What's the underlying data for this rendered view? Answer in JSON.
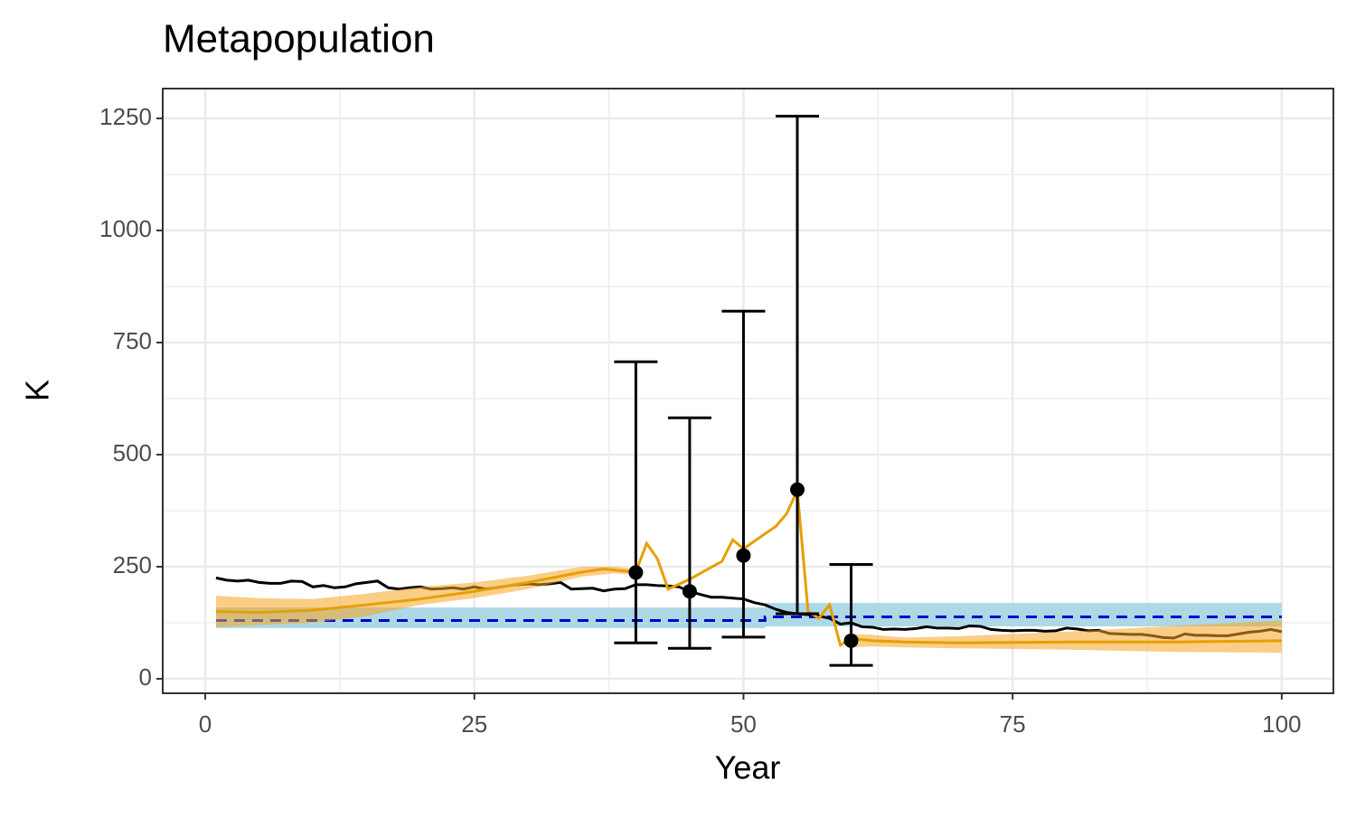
{
  "chart_data": {
    "type": "line",
    "title": "Metapopulation",
    "x_label": "Year",
    "y_label": "K",
    "xlim": [
      -3.95,
      104.8
    ],
    "ylim": [
      -32.3,
      1316.5
    ],
    "xticks": [
      0,
      25,
      50,
      75,
      100
    ],
    "yticks": [
      0,
      250,
      500,
      750,
      1000,
      1250
    ],
    "xminor": [
      12.5,
      37.5,
      62.5,
      87.5
    ],
    "yminor": [
      125,
      375,
      625,
      875,
      1125
    ],
    "grid": true,
    "ribbons": [
      {
        "color": "#add8e6",
        "opacity": 1,
        "x": [
          1,
          52,
          52,
          100
        ],
        "lower": [
          113,
          113,
          117,
          117
        ],
        "upper": [
          159,
          159,
          169,
          169
        ]
      },
      {
        "color": "#f5a623",
        "opacity": 0.55,
        "x": [
          1,
          5,
          10,
          15,
          20,
          25,
          30,
          35,
          38,
          40,
          50,
          60,
          62,
          65,
          70,
          80,
          90,
          100
        ],
        "lower": [
          115,
          120,
          125,
          140,
          165,
          180,
          200,
          228,
          235,
          232,
          null,
          70,
          72,
          70,
          68,
          65,
          60,
          58
        ],
        "upper": [
          185,
          180,
          178,
          190,
          205,
          215,
          230,
          250,
          250,
          245,
          null,
          100,
          98,
          92,
          95,
          105,
          118,
          130
        ]
      }
    ],
    "dashed": {
      "color": "#0000cd",
      "x": [
        1,
        52,
        52,
        100
      ],
      "values": [
        130,
        130,
        138,
        138
      ]
    },
    "lines": [
      {
        "color": "#000000",
        "x": [
          1,
          2,
          3,
          4,
          5,
          6,
          7,
          8,
          9,
          10,
          11,
          12,
          13,
          14,
          15,
          16,
          17,
          18,
          19,
          20,
          21,
          22,
          23,
          24,
          25,
          26,
          27,
          28,
          29,
          30,
          31,
          32,
          33,
          34,
          35,
          36,
          37,
          38,
          39,
          40,
          41,
          42,
          43,
          44,
          45,
          46,
          47,
          48,
          49,
          50,
          51,
          52,
          53,
          54,
          55,
          56,
          57,
          58,
          59,
          60,
          61,
          62,
          63,
          64,
          65,
          66,
          67,
          68,
          69,
          70,
          71,
          72,
          73,
          74,
          75,
          76,
          77,
          78,
          79,
          80,
          81,
          82,
          83,
          84,
          85,
          86,
          87,
          88,
          89,
          90,
          91,
          92,
          93,
          94,
          95,
          96,
          97,
          98,
          99,
          100
        ],
        "values": [
          225,
          220,
          218,
          220,
          215,
          213,
          213,
          218,
          217,
          205,
          208,
          203,
          205,
          212,
          215,
          218,
          203,
          200,
          203,
          205,
          200,
          201,
          203,
          200,
          205,
          200,
          203,
          207,
          210,
          212,
          210,
          212,
          215,
          200,
          201,
          202,
          196,
          200,
          201,
          210,
          210,
          208,
          207,
          205,
          195,
          188,
          182,
          182,
          180,
          178,
          170,
          165,
          155,
          148,
          145,
          143,
          140,
          135,
          122,
          125,
          116,
          115,
          110,
          111,
          110,
          112,
          116,
          113,
          113,
          112,
          118,
          117,
          110,
          108,
          107,
          108,
          108,
          106,
          107,
          113,
          111,
          107,
          108,
          101,
          100,
          99,
          99,
          96,
          92,
          91,
          100,
          97,
          97,
          96,
          96,
          100,
          104,
          106,
          110,
          105
        ]
      },
      {
        "color": "#e69f00",
        "x": [
          1,
          5,
          10,
          15,
          20,
          25,
          30,
          35,
          37,
          40,
          41,
          42,
          43,
          45,
          48,
          49,
          50,
          53,
          54,
          55,
          56,
          57,
          58,
          59,
          60,
          62,
          65,
          70,
          80,
          90,
          100
        ],
        "values": [
          150,
          148,
          153,
          165,
          178,
          195,
          215,
          238,
          245,
          238,
          302,
          268,
          200,
          222,
          262,
          310,
          290,
          340,
          368,
          420,
          150,
          135,
          165,
          75,
          90,
          85,
          82,
          80,
          82,
          82,
          85
        ]
      }
    ],
    "points": {
      "color": "#000000",
      "x": [
        40,
        45,
        50,
        55,
        60
      ],
      "values": [
        237,
        195,
        275,
        422,
        85
      ],
      "lower": [
        80,
        68,
        93,
        145,
        30
      ],
      "upper": [
        707,
        582,
        820,
        1255,
        255
      ]
    }
  }
}
